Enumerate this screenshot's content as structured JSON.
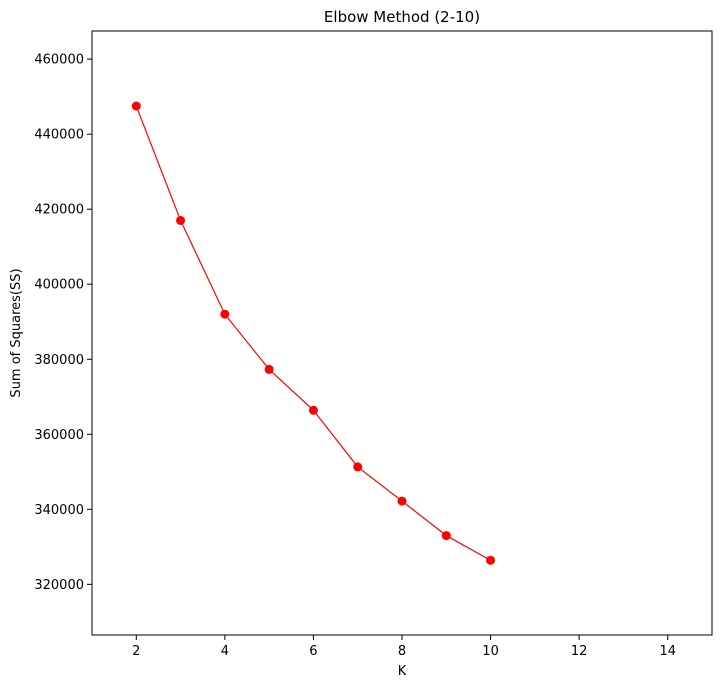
{
  "chart_data": {
    "type": "line",
    "title": "Elbow Method (2-10)",
    "xlabel": "K",
    "ylabel": "Sum of Squares(SS)",
    "xlim": [
      1,
      15
    ],
    "ylim": [
      306500,
      467500
    ],
    "xticks": [
      2,
      4,
      6,
      8,
      10,
      12,
      14
    ],
    "yticks": [
      320000,
      340000,
      360000,
      380000,
      400000,
      420000,
      440000,
      460000
    ],
    "grid": false,
    "series": [
      {
        "color": "#ff0000",
        "marker": "circle",
        "x": [
          2,
          3,
          4,
          5,
          6,
          7,
          8,
          9,
          10
        ],
        "y": [
          447500,
          417000,
          392000,
          377300,
          366400,
          351300,
          342200,
          333000,
          326400
        ]
      }
    ]
  }
}
